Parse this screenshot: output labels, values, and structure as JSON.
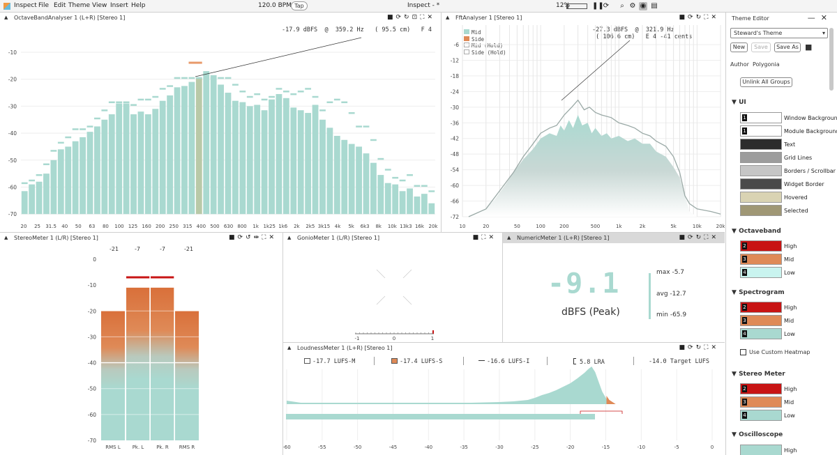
{
  "menubar": {
    "app": "Inspect",
    "items": [
      "File",
      "Edit",
      "Theme",
      "View",
      "Insert",
      "Help"
    ],
    "bpm": "120.0 BPM",
    "tap": "Tap",
    "title": "Inspect - *",
    "zoom": "12%"
  },
  "octave": {
    "title": "OctaveBandAnalyser 1 (L+R) [Stereo 1]",
    "readout_db": "-17.9 dBFS",
    "readout_at": "@",
    "readout_hz": "359.2 Hz",
    "readout_cm": "( 95.5 cm)",
    "readout_note": "F 4",
    "y_ticks": [
      "-10",
      "-20",
      "-30",
      "-40",
      "-50",
      "-60",
      "-70"
    ],
    "x_ticks": [
      "20",
      "25",
      "31.5",
      "40",
      "50",
      "63",
      "80",
      "100",
      "125",
      "160",
      "200",
      "250",
      "315",
      "400",
      "500",
      "630",
      "800",
      "1k",
      "1k25",
      "1k6",
      "2k",
      "2k5",
      "3k15",
      "4k",
      "5k",
      "6k3",
      "8k",
      "10k",
      "13k3",
      "16k",
      "20k"
    ],
    "colors": {
      "bar": "#a9d9d0",
      "hold": "#a9d9d0",
      "selected": "#b9c9a8",
      "peak_marker": "#e89a6a"
    }
  },
  "fft": {
    "title": "FftAnalyser 1 [Stereo 1]",
    "legend": [
      "Mid",
      "Side",
      "Mid (Hold)",
      "Side (Hold)"
    ],
    "readout_db": "-27.3 dBFS",
    "readout_at": "@",
    "readout_hz": "321.9 Hz",
    "readout_cm": "( 106.6 cm)",
    "readout_note": "E 4 -41 cents",
    "y_ticks": [
      "-6",
      "-12",
      "-18",
      "-24",
      "-30",
      "-36",
      "-42",
      "-48",
      "-54",
      "-60",
      "-66",
      "-72"
    ],
    "x_ticks": [
      "10",
      "20",
      "50",
      "100",
      "200",
      "500",
      "1k",
      "2k",
      "5k",
      "10k",
      "20k"
    ]
  },
  "stereo": {
    "title": "StereoMeter 1 (L/R) [Stereo 1]",
    "peaks": [
      "-21",
      "-7",
      "-7",
      "-21"
    ],
    "y_ticks": [
      "0",
      "-10",
      "-20",
      "-30",
      "-40",
      "-50",
      "-60",
      "-70"
    ],
    "labels": [
      "RMS L",
      "Pk. L",
      "Pk. R",
      "RMS R"
    ]
  },
  "gonio": {
    "title": "GonioMeter 1 (L/R) [Stereo 1]",
    "scale": [
      "-1",
      "0",
      "1"
    ]
  },
  "numeric": {
    "title": "NumericMeter 1 (L+R) [Stereo 1]",
    "value": "-9.1",
    "unit": "dBFS (Peak)",
    "max": "max -5.7",
    "avg": "avg -12.7",
    "min": "min -65.9"
  },
  "loudness": {
    "title": "LoudnessMeter 1 (L+R) [Stereo 1]",
    "m": "-17.7 LUFS-M",
    "s": "-17.4 LUFS-S",
    "i": "-16.6 LUFS-I",
    "lra": "5.8 LRA",
    "target": "-14.0 Target LUFS",
    "x_ticks": [
      "-60",
      "-55",
      "-50",
      "-45",
      "-40",
      "-35",
      "-30",
      "-25",
      "-20",
      "-15",
      "-10",
      "-5",
      "0"
    ]
  },
  "theme": {
    "title": "Theme Editor",
    "selected": "Steward's Theme",
    "new": "New",
    "save": "Save",
    "save_as": "Save As",
    "author_label": "Author",
    "author": "Polygonia",
    "unlink": "Unlink All Groups",
    "ui_header": "UI",
    "ui_items": [
      {
        "label": "Window Background",
        "color": "#ffffff",
        "tag": "1"
      },
      {
        "label": "Module Background",
        "color": "#ffffff",
        "tag": "1"
      },
      {
        "label": "Text",
        "color": "#2c2c2c",
        "tag": ""
      },
      {
        "label": "Grid Lines",
        "color": "#9c9c9c",
        "tag": ""
      },
      {
        "label": "Borders / Scrollbar",
        "color": "#c6c6c6",
        "tag": ""
      },
      {
        "label": "Widget Border",
        "color": "#4a4a4a",
        "tag": ""
      },
      {
        "label": "Hovered",
        "color": "#d9d3b3",
        "tag": ""
      },
      {
        "label": "Selected",
        "color": "#9f9775",
        "tag": ""
      }
    ],
    "octave_header": "Octaveband",
    "octave_items": [
      {
        "label": "High",
        "color": "#c81414",
        "tag": "2"
      },
      {
        "label": "Mid",
        "color": "#df8a57",
        "tag": "3"
      },
      {
        "label": "Low",
        "color": "#c9f4ef",
        "tag": "4"
      }
    ],
    "spectro_header": "Spectrogram",
    "spectro_items": [
      {
        "label": "High",
        "color": "#c81414",
        "tag": "2"
      },
      {
        "label": "Mid",
        "color": "#df8a57",
        "tag": "3"
      },
      {
        "label": "Low",
        "color": "#a9d9d0",
        "tag": "4"
      }
    ],
    "custom_heatmap": "Use Custom Heatmap",
    "stereo_header": "Stereo Meter",
    "stereo_items": [
      {
        "label": "High",
        "color": "#c81414",
        "tag": "2"
      },
      {
        "label": "Mid",
        "color": "#df8a57",
        "tag": "3"
      },
      {
        "label": "Low",
        "color": "#a9d9d0",
        "tag": "4"
      }
    ],
    "osc_header": "Oscilloscope",
    "osc_items": [
      {
        "label": "High",
        "color": "#a9d9d0",
        "tag": ""
      }
    ]
  }
}
